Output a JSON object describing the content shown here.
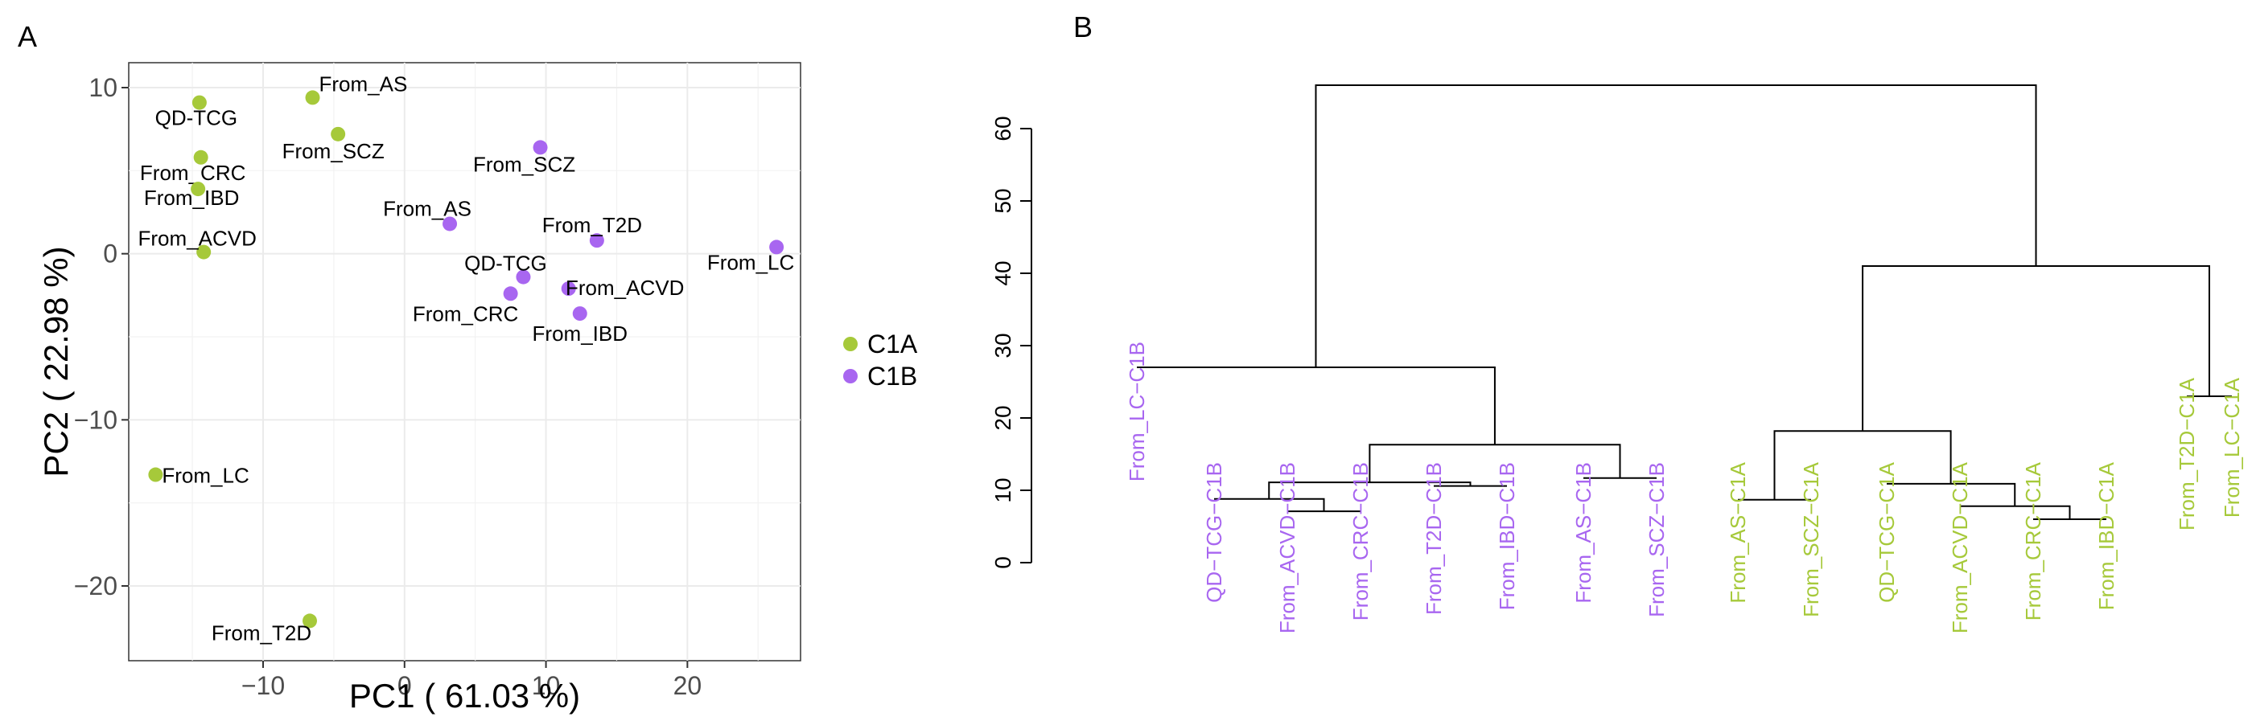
{
  "panel_labels": [
    "A",
    "B"
  ],
  "colors": {
    "C1A": "#a6c93a",
    "C1B": "#a866f0",
    "grid": "#ebebeb",
    "axis": "#333333"
  },
  "chart_data": [
    {
      "type": "scatter",
      "panel": "A",
      "xlabel": "PC1 ( 61.03 %)",
      "ylabel": "PC2 ( 22.98 %)",
      "xlim": [
        -19.5,
        28
      ],
      "ylim": [
        -24.5,
        11.5
      ],
      "xticks": [
        -10,
        0,
        10,
        20
      ],
      "yticks": [
        -20,
        -10,
        0,
        10
      ],
      "grid": true,
      "legend_position": "right",
      "series": [
        {
          "name": "C1A",
          "points": [
            {
              "label": "QD-TCG",
              "x": -14.5,
              "y": 9.1
            },
            {
              "label": "From_AS",
              "x": -6.5,
              "y": 9.4
            },
            {
              "label": "From_SCZ",
              "x": -4.7,
              "y": 7.2
            },
            {
              "label": "From_CRC",
              "x": -14.4,
              "y": 5.8
            },
            {
              "label": "From_IBD",
              "x": -14.6,
              "y": 3.9
            },
            {
              "label": "From_ACVD",
              "x": -14.2,
              "y": 0.1
            },
            {
              "label": "From_LC",
              "x": -17.6,
              "y": -13.3
            },
            {
              "label": "From_T2D",
              "x": -6.7,
              "y": -22.1
            }
          ]
        },
        {
          "name": "C1B",
          "points": [
            {
              "label": "From_SCZ",
              "x": 9.6,
              "y": 6.4
            },
            {
              "label": "From_AS",
              "x": 3.2,
              "y": 1.8
            },
            {
              "label": "From_T2D",
              "x": 13.6,
              "y": 0.8
            },
            {
              "label": "From_LC",
              "x": 26.3,
              "y": 0.4
            },
            {
              "label": "QD-TCG",
              "x": 8.4,
              "y": -1.4
            },
            {
              "label": "From_ACVD",
              "x": 11.6,
              "y": -2.1
            },
            {
              "label": "From_CRC",
              "x": 7.5,
              "y": -2.4
            },
            {
              "label": "From_IBD",
              "x": 12.4,
              "y": -3.6
            }
          ]
        }
      ]
    },
    {
      "type": "dendrogram",
      "panel": "B",
      "ylim": [
        0,
        66
      ],
      "yticks": [
        0,
        10,
        20,
        30,
        40,
        50,
        60
      ],
      "leaves": [
        {
          "label": "From_LC−C1B",
          "group": "C1B"
        },
        {
          "label": "QD−TCG−C1B",
          "group": "C1B"
        },
        {
          "label": "From_ACVD−C1B",
          "group": "C1B"
        },
        {
          "label": "From_CRC−C1B",
          "group": "C1B"
        },
        {
          "label": "From_T2D−C1B",
          "group": "C1B"
        },
        {
          "label": "From_IBD−C1B",
          "group": "C1B"
        },
        {
          "label": "From_AS−C1B",
          "group": "C1B"
        },
        {
          "label": "From_SCZ−C1B",
          "group": "C1B"
        },
        {
          "label": "From_AS−C1A",
          "group": "C1A"
        },
        {
          "label": "From_SCZ−C1A",
          "group": "C1A"
        },
        {
          "label": "QD−TCG−C1A",
          "group": "C1A"
        },
        {
          "label": "From_ACVD−C1A",
          "group": "C1A"
        },
        {
          "label": "From_CRC−C1A",
          "group": "C1A"
        },
        {
          "label": "From_IBD−C1A",
          "group": "C1A"
        },
        {
          "label": "From_T2D−C1A",
          "group": "C1A"
        },
        {
          "label": "From_LC−C1A",
          "group": "C1A"
        }
      ],
      "merges": [
        {
          "left": 2,
          "right": 3,
          "height": 7.1
        },
        {
          "left": 1,
          "right": 16,
          "height": 8.8
        },
        {
          "left": 4,
          "right": 5,
          "height": 10.6
        },
        {
          "left": 17,
          "right": 18,
          "height": 11.1
        },
        {
          "left": 6,
          "right": 7,
          "height": 11.7
        },
        {
          "left": 19,
          "right": 20,
          "height": 16.3
        },
        {
          "left": 0,
          "right": 21,
          "height": 27.0
        },
        {
          "left": 12,
          "right": 13,
          "height": 6.0
        },
        {
          "left": 11,
          "right": 23,
          "height": 7.8
        },
        {
          "left": 8,
          "right": 9,
          "height": 8.7
        },
        {
          "left": 10,
          "right": 24,
          "height": 10.9
        },
        {
          "left": 25,
          "right": 26,
          "height": 18.2
        },
        {
          "left": 14,
          "right": 15,
          "height": 23.0
        },
        {
          "left": 27,
          "right": 28,
          "height": 41.0
        },
        {
          "left": 22,
          "right": 29,
          "height": 66.0
        }
      ]
    }
  ]
}
